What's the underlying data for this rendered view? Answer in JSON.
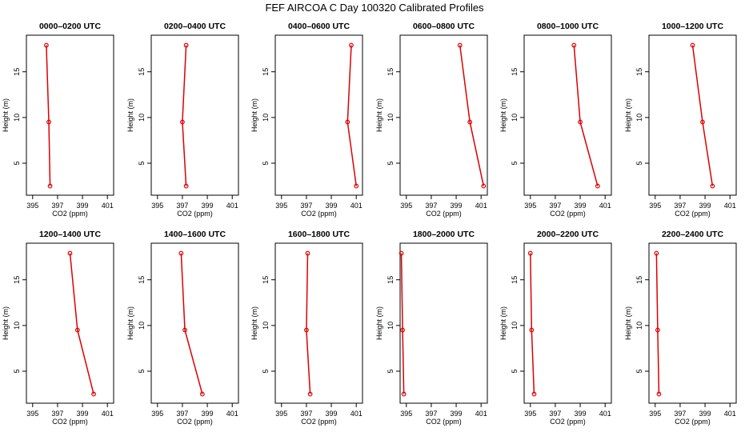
{
  "figure": {
    "title": "FEF AIRCOA C  Day 100320  Calibrated Profiles"
  },
  "colors": {
    "profile": "#dd0000",
    "axes": "#000000"
  },
  "chart_data": [
    {
      "type": "line",
      "title": "0000–0200 UTC",
      "xlabel": "CO2 (ppm)",
      "ylabel": "Height (m)",
      "xlim": [
        394.5,
        401.5
      ],
      "ylim": [
        1.5,
        19
      ],
      "xticks": [
        395,
        397,
        399,
        401
      ],
      "yticks": [
        5,
        10,
        15
      ],
      "series": [
        {
          "name": "profile",
          "x": [
            396.1,
            396.3,
            396.4
          ],
          "y": [
            17.9,
            9.5,
            2.5
          ]
        }
      ]
    },
    {
      "type": "line",
      "title": "0200–0400 UTC",
      "xlabel": "CO2 (ppm)",
      "ylabel": "Height (m)",
      "xlim": [
        394.5,
        401.5
      ],
      "ylim": [
        1.5,
        19
      ],
      "xticks": [
        395,
        397,
        399,
        401
      ],
      "yticks": [
        5,
        10,
        15
      ],
      "series": [
        {
          "name": "profile",
          "x": [
            397.3,
            397.0,
            397.3
          ],
          "y": [
            17.9,
            9.5,
            2.5
          ]
        }
      ]
    },
    {
      "type": "line",
      "title": "0400–0600 UTC",
      "xlabel": "CO2 (ppm)",
      "ylabel": "Height (m)",
      "xlim": [
        394.5,
        401.5
      ],
      "ylim": [
        1.5,
        19
      ],
      "xticks": [
        395,
        397,
        399,
        401
      ],
      "yticks": [
        5,
        10,
        15
      ],
      "series": [
        {
          "name": "profile",
          "x": [
            400.6,
            400.3,
            401.0
          ],
          "y": [
            17.9,
            9.5,
            2.5
          ]
        }
      ]
    },
    {
      "type": "line",
      "title": "0600–0800 UTC",
      "xlabel": "CO2 (ppm)",
      "ylabel": "Height (m)",
      "xlim": [
        394.5,
        401.5
      ],
      "ylim": [
        1.5,
        19
      ],
      "xticks": [
        395,
        397,
        399,
        401
      ],
      "yticks": [
        5,
        10,
        15
      ],
      "series": [
        {
          "name": "profile",
          "x": [
            399.3,
            400.1,
            401.2
          ],
          "y": [
            17.9,
            9.5,
            2.5
          ]
        }
      ]
    },
    {
      "type": "line",
      "title": "0800–1000 UTC",
      "xlabel": "CO2 (ppm)",
      "ylabel": "Height (m)",
      "xlim": [
        394.5,
        401.5
      ],
      "ylim": [
        1.5,
        19
      ],
      "xticks": [
        395,
        397,
        399,
        401
      ],
      "yticks": [
        5,
        10,
        15
      ],
      "series": [
        {
          "name": "profile",
          "x": [
            398.5,
            399.0,
            400.4
          ],
          "y": [
            17.9,
            9.5,
            2.5
          ]
        }
      ]
    },
    {
      "type": "line",
      "title": "1000–1200 UTC",
      "xlabel": "CO2 (ppm)",
      "ylabel": "Height (m)",
      "xlim": [
        394.5,
        401.5
      ],
      "ylim": [
        1.5,
        19
      ],
      "xticks": [
        395,
        397,
        399,
        401
      ],
      "yticks": [
        5,
        10,
        15
      ],
      "series": [
        {
          "name": "profile",
          "x": [
            398.0,
            398.8,
            399.6
          ],
          "y": [
            17.9,
            9.5,
            2.5
          ]
        }
      ]
    },
    {
      "type": "line",
      "title": "1200–1400 UTC",
      "xlabel": "CO2 (ppm)",
      "ylabel": "Height (m)",
      "xlim": [
        394.5,
        401.5
      ],
      "ylim": [
        1.5,
        19
      ],
      "xticks": [
        395,
        397,
        399,
        401
      ],
      "yticks": [
        5,
        10,
        15
      ],
      "series": [
        {
          "name": "profile",
          "x": [
            398.0,
            398.6,
            399.9
          ],
          "y": [
            17.9,
            9.5,
            2.5
          ]
        }
      ]
    },
    {
      "type": "line",
      "title": "1400–1600 UTC",
      "xlabel": "CO2 (ppm)",
      "ylabel": "Height (m)",
      "xlim": [
        394.5,
        401.5
      ],
      "ylim": [
        1.5,
        19
      ],
      "xticks": [
        395,
        397,
        399,
        401
      ],
      "yticks": [
        5,
        10,
        15
      ],
      "series": [
        {
          "name": "profile",
          "x": [
            396.9,
            397.2,
            398.6
          ],
          "y": [
            17.9,
            9.5,
            2.5
          ]
        }
      ]
    },
    {
      "type": "line",
      "title": "1600–1800 UTC",
      "xlabel": "CO2 (ppm)",
      "ylabel": "Height (m)",
      "xlim": [
        394.5,
        401.5
      ],
      "ylim": [
        1.5,
        19
      ],
      "xticks": [
        395,
        397,
        399,
        401
      ],
      "yticks": [
        5,
        10,
        15
      ],
      "series": [
        {
          "name": "profile",
          "x": [
            397.1,
            397.0,
            397.3
          ],
          "y": [
            17.9,
            9.5,
            2.5
          ]
        }
      ]
    },
    {
      "type": "line",
      "title": "1800–2000 UTC",
      "xlabel": "CO2 (ppm)",
      "ylabel": "Height (m)",
      "xlim": [
        394.5,
        401.5
      ],
      "ylim": [
        1.5,
        19
      ],
      "xticks": [
        395,
        397,
        399,
        401
      ],
      "yticks": [
        5,
        10,
        15
      ],
      "series": [
        {
          "name": "profile",
          "x": [
            394.6,
            394.7,
            394.8
          ],
          "y": [
            17.9,
            9.5,
            2.5
          ]
        }
      ]
    },
    {
      "type": "line",
      "title": "2000–2200 UTC",
      "xlabel": "CO2 (ppm)",
      "ylabel": "Height (m)",
      "xlim": [
        394.5,
        401.5
      ],
      "ylim": [
        1.5,
        19
      ],
      "xticks": [
        395,
        397,
        399,
        401
      ],
      "yticks": [
        5,
        10,
        15
      ],
      "series": [
        {
          "name": "profile",
          "x": [
            395.0,
            395.1,
            395.3
          ],
          "y": [
            17.9,
            9.5,
            2.5
          ]
        }
      ]
    },
    {
      "type": "line",
      "title": "2200–2400 UTC",
      "xlabel": "CO2 (ppm)",
      "ylabel": "Height (m)",
      "xlim": [
        394.5,
        401.5
      ],
      "ylim": [
        1.5,
        19
      ],
      "xticks": [
        395,
        397,
        399,
        401
      ],
      "yticks": [
        5,
        10,
        15
      ],
      "series": [
        {
          "name": "profile",
          "x": [
            395.1,
            395.2,
            395.3
          ],
          "y": [
            17.9,
            9.5,
            2.5
          ]
        }
      ]
    }
  ]
}
